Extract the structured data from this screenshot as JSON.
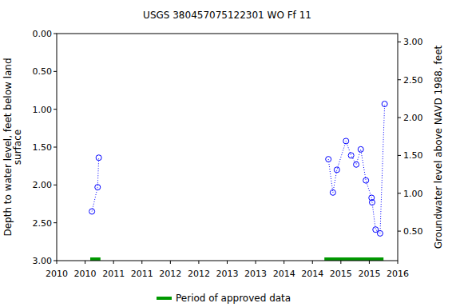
{
  "chart_data": {
    "type": "line",
    "title": "USGS 380457075122301 WO Ff 11",
    "y_label": [
      "Depth to water level, feet below land",
      "surface"
    ],
    "y2_label": "Groundwater level above NAVD 1988, feet",
    "xlim": [
      2010,
      2016
    ],
    "xticks": [
      {
        "value": 2010,
        "label": "2010"
      },
      {
        "value": 2010.5,
        "label": "2010"
      },
      {
        "value": 2011,
        "label": "2011"
      },
      {
        "value": 2011.5,
        "label": "2011"
      },
      {
        "value": 2012,
        "label": "2012"
      },
      {
        "value": 2012.5,
        "label": "2012"
      },
      {
        "value": 2013,
        "label": "2013"
      },
      {
        "value": 2013.5,
        "label": "2013"
      },
      {
        "value": 2014,
        "label": "2014"
      },
      {
        "value": 2014.5,
        "label": "2014"
      },
      {
        "value": 2015,
        "label": "2015"
      },
      {
        "value": 2015.5,
        "label": "2015"
      },
      {
        "value": 2016,
        "label": "2016"
      }
    ],
    "ylim": [
      3,
      0
    ],
    "yticks": [
      {
        "value": 0,
        "label": "0.00"
      },
      {
        "value": 0.5,
        "label": "0.50"
      },
      {
        "value": 1,
        "label": "1.00"
      },
      {
        "value": 1.5,
        "label": "1.50"
      },
      {
        "value": 2,
        "label": "2.00"
      },
      {
        "value": 2.5,
        "label": "2.50"
      },
      {
        "value": 3,
        "label": "3.00"
      }
    ],
    "y2lim": [
      0.11,
      3.11
    ],
    "y2ticks": [
      {
        "value": 0.5,
        "label": "0.50"
      },
      {
        "value": 1,
        "label": "1.00"
      },
      {
        "value": 1.5,
        "label": "1.50"
      },
      {
        "value": 2,
        "label": "2.00"
      },
      {
        "value": 2.5,
        "label": "2.50"
      },
      {
        "value": 3,
        "label": "3.00"
      }
    ],
    "grid": false,
    "legend": "bottom",
    "series": [
      {
        "name": "Depth to water level",
        "color": "#0000ff",
        "marker": "circle-open",
        "line_style": "dotted",
        "x": [
          2010.62,
          2010.72,
          2010.74,
          null,
          2014.78,
          2014.86,
          2014.93,
          2015.09,
          2015.18,
          2015.27,
          2015.35,
          2015.44,
          2015.54,
          2015.55,
          2015.61,
          2015.69,
          2015.77
        ],
        "values": [
          2.35,
          2.03,
          1.64,
          null,
          1.66,
          2.1,
          1.8,
          1.42,
          1.61,
          1.73,
          1.53,
          1.94,
          2.17,
          2.23,
          2.59,
          2.64,
          0.93
        ]
      }
    ],
    "approved": {
      "name": "Period of approved data",
      "color": "#009900",
      "periods": [
        [
          2010.59,
          2010.77
        ],
        [
          2014.71,
          2015.75
        ]
      ]
    }
  }
}
